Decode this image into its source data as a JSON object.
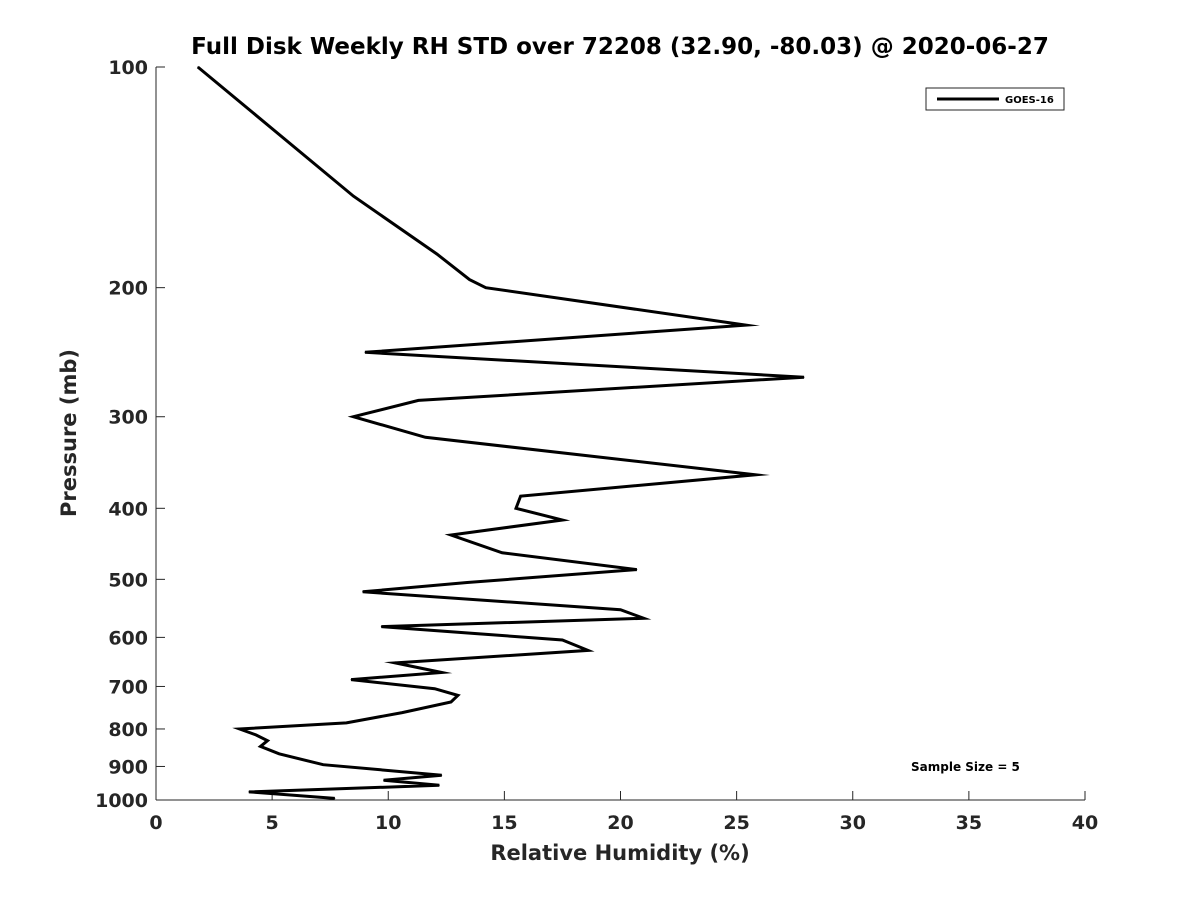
{
  "chart_data": {
    "type": "line",
    "title": "Full Disk Weekly RH STD over 72208 (32.90, -80.03) @ 2020-06-27",
    "xlabel": "Relative Humidity (%)",
    "ylabel": "Pressure (mb)",
    "xlim": [
      0,
      40
    ],
    "ylim": [
      100,
      1000
    ],
    "yscale": "log",
    "y_reversed": true,
    "xticks": [
      0,
      5,
      10,
      15,
      20,
      25,
      30,
      35,
      40
    ],
    "yticks": [
      100,
      200,
      300,
      400,
      500,
      600,
      700,
      800,
      900,
      1000
    ],
    "grid": false,
    "legend_position": "top-right",
    "annotation": "Sample Size = 5",
    "series": [
      {
        "name": "GOES-16",
        "color": "#000000",
        "points": [
          [
            1.8,
            100
          ],
          [
            8.5,
            150
          ],
          [
            12.1,
            180
          ],
          [
            13.5,
            195
          ],
          [
            14.2,
            200
          ],
          [
            25.4,
            225
          ],
          [
            9.0,
            245
          ],
          [
            27.9,
            265
          ],
          [
            11.3,
            285
          ],
          [
            8.5,
            300
          ],
          [
            11.6,
            320
          ],
          [
            25.8,
            360
          ],
          [
            15.7,
            385
          ],
          [
            15.5,
            400
          ],
          [
            17.5,
            415
          ],
          [
            12.7,
            435
          ],
          [
            14.9,
            460
          ],
          [
            20.7,
            485
          ],
          [
            13.4,
            505
          ],
          [
            8.9,
            520
          ],
          [
            20.0,
            550
          ],
          [
            21.0,
            565
          ],
          [
            9.7,
            580
          ],
          [
            17.5,
            605
          ],
          [
            18.6,
            625
          ],
          [
            10.3,
            650
          ],
          [
            12.3,
            670
          ],
          [
            8.4,
            685
          ],
          [
            12.0,
            705
          ],
          [
            13.0,
            720
          ],
          [
            12.7,
            735
          ],
          [
            10.6,
            760
          ],
          [
            8.2,
            785
          ],
          [
            3.6,
            800
          ],
          [
            4.3,
            815
          ],
          [
            4.8,
            830
          ],
          [
            4.5,
            845
          ],
          [
            5.3,
            865
          ],
          [
            7.2,
            895
          ],
          [
            12.3,
            925
          ],
          [
            9.8,
            940
          ],
          [
            12.2,
            955
          ],
          [
            4.0,
            975
          ],
          [
            7.7,
            995
          ]
        ]
      }
    ]
  }
}
